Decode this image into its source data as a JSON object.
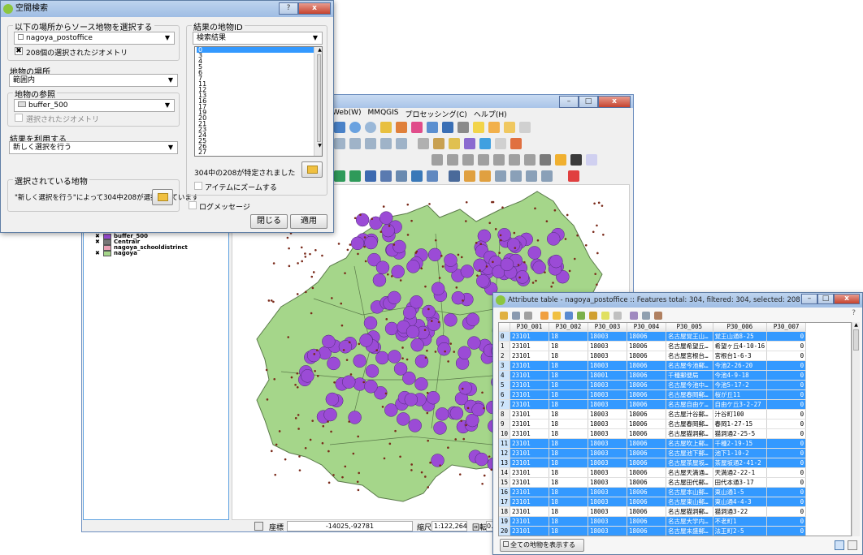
{
  "colors": {
    "map_fill": "#a5d68a",
    "buffer_fill": "#9b4bd6",
    "selection_blue": "#3399ff",
    "centrair": "#777777",
    "schooldistrict": "#e8a0b4"
  },
  "dialog": {
    "title": "空間検索",
    "source_group_label": "以下の場所からソース地物を選択する",
    "source_layer": "nagoya_postoffice",
    "selected_geom_label": "208個の選択されたジオメトリ",
    "location_label": "地物の場所",
    "location_value": "範囲内",
    "reference_group_label": "地物の参照",
    "reference_layer": "buffer_500",
    "reference_selected_label": "選択されたジオメトリ",
    "result_use_label": "結果を利用する",
    "result_use_value": "新しく選択を行う",
    "selected_features_group_label": "選択されている地物",
    "selected_features_text": "\"新しく選択を行う\"によって304中208が選択されています",
    "result_ids_group_label": "結果の地物ID",
    "result_combo_value": "検索結果",
    "result_ids": [
      "0",
      "3",
      "4",
      "5",
      "6",
      "7",
      "11",
      "12",
      "13",
      "16",
      "17",
      "19",
      "20",
      "21",
      "23",
      "24",
      "25",
      "26",
      "27"
    ],
    "status_text": "304中の208が特定されました",
    "zoom_label": "アイテムにズームする",
    "log_label": "ログメッセージ",
    "close_button": "閉じる",
    "apply_button": "適用"
  },
  "qgis": {
    "menu_items": [
      "Web(W)",
      "MMQGIS",
      "プロセッシング(C)",
      "ヘルプ(H)"
    ],
    "layers": [
      {
        "name": "buffer_500",
        "checked": true,
        "color": "#9b4bd6"
      },
      {
        "name": "Centrair",
        "checked": true,
        "color": "#777777"
      },
      {
        "name": "nagoya_schooldistrinct",
        "checked": false,
        "color": "#e8a0b4"
      },
      {
        "name": "nagoya",
        "checked": true,
        "color": "#a5d68a"
      }
    ],
    "status": {
      "coord_label": "座標",
      "coord_value": "-14025,-92781",
      "scale_label": "縮尺",
      "scale_value": "1:122,264",
      "rotation_label": "回転",
      "rotation_value": "0.0"
    }
  },
  "attr_table": {
    "title": "Attribute table - nagoya_postoffice :: Features total: 304, filtered: 304, selected: 208",
    "help": "?",
    "columns": [
      "P30_001",
      "P30_002",
      "P30_003",
      "P30_004",
      "P30_005",
      "P30_006",
      "P30_007"
    ],
    "rows": [
      {
        "id": "0",
        "sel": true,
        "c": [
          "23101",
          "18",
          "18003",
          "18006",
          "名古屋覚王山…",
          "覚王山通8-25",
          "0"
        ]
      },
      {
        "id": "1",
        "sel": false,
        "c": [
          "23101",
          "18",
          "18003",
          "18006",
          "名古屋希望丘…",
          "希望ヶ丘4-10-16",
          "0"
        ]
      },
      {
        "id": "2",
        "sel": false,
        "c": [
          "23101",
          "18",
          "18003",
          "18006",
          "名古屋宮根台…",
          "宮根台1-6-3",
          "0"
        ]
      },
      {
        "id": "3",
        "sel": true,
        "c": [
          "23101",
          "18",
          "18003",
          "18006",
          "名古屋今池郵…",
          "今池2-26-20",
          "0"
        ]
      },
      {
        "id": "4",
        "sel": true,
        "c": [
          "23101",
          "18",
          "18001",
          "18006",
          "千種郵便局",
          "今池4-9-18",
          "0"
        ]
      },
      {
        "id": "5",
        "sel": true,
        "c": [
          "23101",
          "18",
          "18003",
          "18006",
          "名古屋今池中…",
          "今池5-17-2",
          "0"
        ]
      },
      {
        "id": "6",
        "sel": true,
        "c": [
          "23101",
          "18",
          "18003",
          "18006",
          "名古屋春岡郵…",
          "桜が丘11",
          "0"
        ]
      },
      {
        "id": "7",
        "sel": true,
        "c": [
          "23101",
          "18",
          "18003",
          "18006",
          "名古屋自由ケ…",
          "自由ケ丘3-2-27",
          "0"
        ]
      },
      {
        "id": "8",
        "sel": false,
        "c": [
          "23101",
          "18",
          "18003",
          "18006",
          "名古屋汁谷郵…",
          "汁谷町100",
          "0"
        ]
      },
      {
        "id": "9",
        "sel": false,
        "c": [
          "23101",
          "18",
          "18003",
          "18006",
          "名古屋春岡郵…",
          "春岡1-27-15",
          "0"
        ]
      },
      {
        "id": "10",
        "sel": false,
        "c": [
          "23101",
          "18",
          "18003",
          "18006",
          "名古屋猫洞郵…",
          "猫洞通2-25-5",
          "0"
        ]
      },
      {
        "id": "11",
        "sel": true,
        "c": [
          "23101",
          "18",
          "18003",
          "18006",
          "名古屋吹上郵…",
          "千種2-19-15",
          "0"
        ]
      },
      {
        "id": "12",
        "sel": true,
        "c": [
          "23101",
          "18",
          "18003",
          "18006",
          "名古屋池下郵…",
          "池下1-10-2",
          "0"
        ]
      },
      {
        "id": "13",
        "sel": true,
        "c": [
          "23101",
          "18",
          "18003",
          "18006",
          "名古屋茶屋坂…",
          "茶屋坂通2-41-2",
          "0"
        ]
      },
      {
        "id": "14",
        "sel": false,
        "c": [
          "23101",
          "18",
          "18003",
          "18006",
          "名古屋天満通…",
          "天満通2-22-1",
          "0"
        ]
      },
      {
        "id": "15",
        "sel": false,
        "c": [
          "23101",
          "18",
          "18003",
          "18006",
          "名古屋田代郵…",
          "田代本通3-17",
          "0"
        ]
      },
      {
        "id": "16",
        "sel": true,
        "c": [
          "23101",
          "18",
          "18003",
          "18006",
          "名古屋本山郵…",
          "東山通1-5",
          "0"
        ]
      },
      {
        "id": "17",
        "sel": true,
        "c": [
          "23101",
          "18",
          "18003",
          "18006",
          "名古屋東山郵…",
          "東山通4-4-3",
          "0"
        ]
      },
      {
        "id": "18",
        "sel": false,
        "c": [
          "23101",
          "18",
          "18003",
          "18006",
          "名古屋猫洞郵…",
          "猫洞通3-22",
          "0"
        ]
      },
      {
        "id": "19",
        "sel": true,
        "c": [
          "23101",
          "18",
          "18003",
          "18006",
          "名古屋大学内…",
          "不老町1",
          "0"
        ]
      },
      {
        "id": "20",
        "sel": true,
        "c": [
          "23101",
          "18",
          "18003",
          "18006",
          "名古屋末盛郵…",
          "法王町2-5",
          "0"
        ]
      },
      {
        "id": "21",
        "sel": true,
        "c": [
          "23101",
          "18",
          "18003",
          "18006",
          "名古屋萱場郵…",
          "豊年町14-13",
          "0"
        ]
      },
      {
        "id": "22",
        "sel": false,
        "c": [
          "23101",
          "18",
          "18003",
          "18006",
          "名古屋星が丘…",
          "星ヶ丘2-1",
          "0"
        ]
      },
      {
        "id": "23",
        "sel": true,
        "c": [
          "23102",
          "18",
          "18003",
          "18006",
          "名古屋東郵便局",
          "東1-8-18",
          "0"
        ]
      }
    ],
    "show_all_label": "全ての地物を表示する"
  }
}
